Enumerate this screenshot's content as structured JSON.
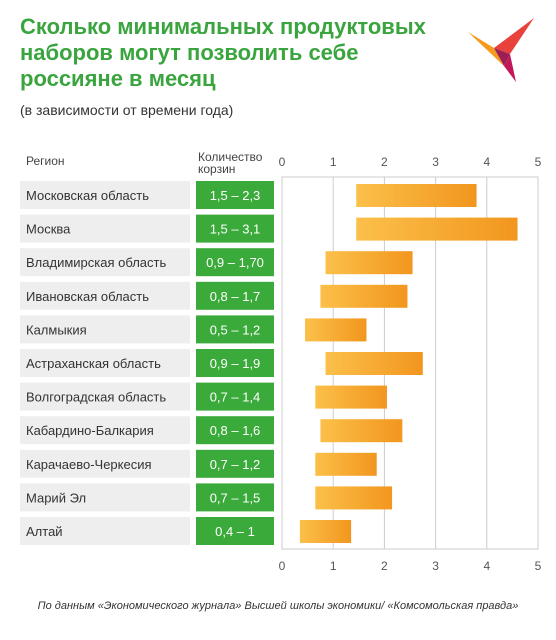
{
  "header": {
    "title": "Сколько минимальных продуктовых наборов могут позволить себе россияне в месяц",
    "subtitle": "(в зависимости от времени года)"
  },
  "columns": {
    "region": "Регион",
    "count_line1": "Количество",
    "count_line2": "корзин"
  },
  "footer": "По данным «Экономического журнала» Высшей школы экономики/ «Комсомольская правда»",
  "colors": {
    "title": "#3aa53e",
    "badge": "#3aaa3a",
    "bar_light": "#fbc04a",
    "bar_dark": "#f2961e",
    "row_bg": "#eeeeee",
    "grid": "#cccccc"
  },
  "chart_data": {
    "type": "bar",
    "orientation": "horizontal-range",
    "xlim": [
      0,
      5
    ],
    "xticks": [
      0,
      1,
      2,
      3,
      4,
      5
    ],
    "categories": [
      "Московская область",
      "Москва",
      "Владимирская область",
      "Ивановская область",
      "Калмыкия",
      "Астраханская область",
      "Волгоградская область",
      "Кабардино-Балкария",
      "Карачаево-Черкесия",
      "Марий Эл",
      "Алтай"
    ],
    "labels": [
      "1,5 – 2,3",
      "1,5 – 3,1",
      "0,9 – 1,70",
      "0,8 – 1,7",
      "0,5 – 1,2",
      "0,9 – 1,9",
      "0,7 – 1,4",
      "0,8 – 1,6",
      "0,7 – 1,2",
      "0,7 – 1,5",
      "0,4 – 1"
    ],
    "ranges": [
      [
        1.45,
        3.8
      ],
      [
        1.45,
        4.6
      ],
      [
        0.85,
        2.55
      ],
      [
        0.75,
        2.45
      ],
      [
        0.45,
        1.65
      ],
      [
        0.85,
        2.75
      ],
      [
        0.65,
        2.05
      ],
      [
        0.75,
        2.35
      ],
      [
        0.65,
        1.85
      ],
      [
        0.65,
        2.15
      ],
      [
        0.35,
        1.35
      ]
    ]
  }
}
